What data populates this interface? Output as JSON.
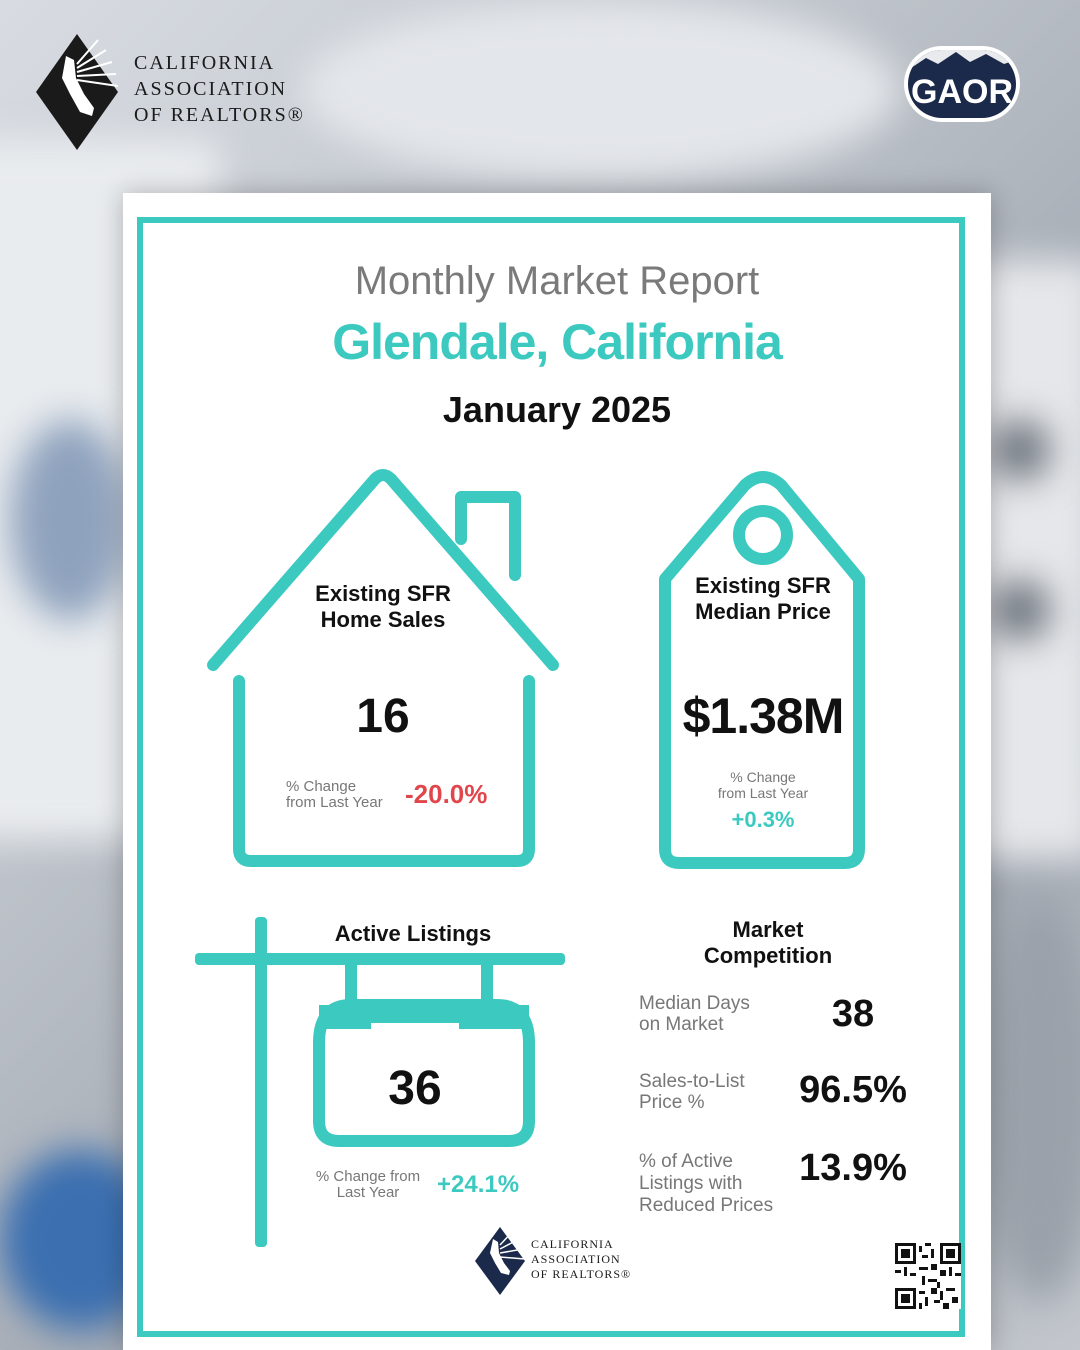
{
  "header": {
    "car_logo_text": [
      "CALIFORNIA",
      "ASSOCIATION",
      "OF REALTORS®"
    ],
    "gaor_badge": "GAOR"
  },
  "report": {
    "title": "Monthly Market Report",
    "city": "Glendale, California",
    "period": "January 2025"
  },
  "home_sales": {
    "label_line1": "Existing SFR",
    "label_line2": "Home Sales",
    "value": "16",
    "change_label_line1": "% Change",
    "change_label_line2": "from Last Year",
    "change_value": "-20.0%"
  },
  "median_price": {
    "label_line1": "Existing SFR",
    "label_line2": "Median Price",
    "value": "$1.38M",
    "change_label_line1": "% Change",
    "change_label_line2": "from Last Year",
    "change_value": "+0.3%"
  },
  "active_listings": {
    "label": "Active Listings",
    "value": "36",
    "change_label_line1": "% Change from",
    "change_label_line2": "Last Year",
    "change_value": "+24.1%"
  },
  "market_competition": {
    "title_line1": "Market",
    "title_line2": "Competition",
    "rows": [
      {
        "label_lines": [
          "Median Days",
          "on Market"
        ],
        "value": "38"
      },
      {
        "label_lines": [
          "Sales-to-List",
          "Price %"
        ],
        "value": "96.5%"
      },
      {
        "label_lines": [
          "% of Active",
          "Listings with",
          "Reduced Prices"
        ],
        "value": "13.9%"
      }
    ]
  },
  "footer": {
    "car_logo_text": [
      "CALIFORNIA",
      "ASSOCIATION",
      "OF REALTORS®"
    ]
  },
  "colors": {
    "accent": "#3cc9c0",
    "negative": "#e0474c",
    "positive": "#3cc9c0",
    "navy": "#1b2a4a"
  }
}
